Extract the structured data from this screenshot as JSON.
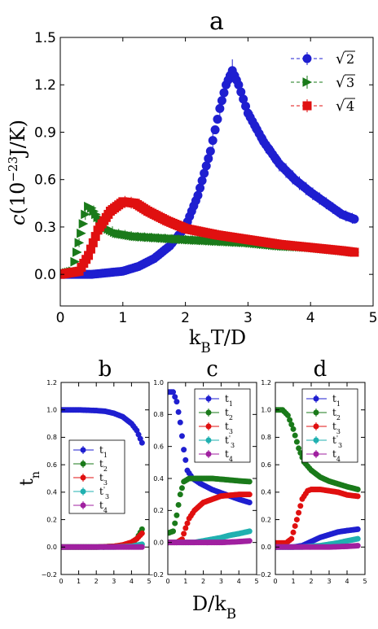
{
  "chart_data": [
    {
      "type": "scatter",
      "title": "a",
      "xlabel": "k_B T/D",
      "ylabel": "c(10^-23 J/K)",
      "xlim": [
        0,
        5
      ],
      "ylim": [
        -0.2,
        1.5
      ],
      "xticks": [
        "0",
        "1",
        "2",
        "3",
        "4",
        "5"
      ],
      "yticks": [
        "0.0",
        "0.3",
        "0.6",
        "0.9",
        "1.2",
        "1.5"
      ],
      "legend_position": "top-right",
      "series": [
        {
          "name": "√2",
          "color": "#1f1fd0",
          "marker": "circle",
          "x": [
            0.0,
            0.5,
            1.0,
            1.25,
            1.5,
            1.75,
            2.0,
            2.2,
            2.4,
            2.55,
            2.65,
            2.75,
            2.85,
            3.0,
            3.25,
            3.5,
            3.75,
            4.0,
            4.25,
            4.5,
            4.7
          ],
          "y": [
            0.0,
            0.0,
            0.02,
            0.05,
            0.1,
            0.18,
            0.3,
            0.5,
            0.78,
            1.05,
            1.2,
            1.29,
            1.2,
            1.02,
            0.84,
            0.7,
            0.6,
            0.52,
            0.45,
            0.38,
            0.35
          ]
        },
        {
          "name": "√3",
          "color": "#1a7a1a",
          "marker": "triangle-right",
          "x": [
            0.0,
            0.2,
            0.3,
            0.4,
            0.45,
            0.5,
            0.6,
            0.7,
            0.9,
            1.2,
            1.6,
            2.0,
            2.5,
            3.0,
            3.5,
            4.0,
            4.5,
            4.7
          ],
          "y": [
            0.0,
            0.02,
            0.2,
            0.38,
            0.43,
            0.42,
            0.36,
            0.3,
            0.26,
            0.24,
            0.23,
            0.22,
            0.21,
            0.2,
            0.18,
            0.17,
            0.15,
            0.14
          ]
        },
        {
          "name": "√4",
          "color": "#e01010",
          "marker": "square",
          "x": [
            0.0,
            0.3,
            0.45,
            0.6,
            0.8,
            1.0,
            1.2,
            1.4,
            1.7,
            2.0,
            2.5,
            3.0,
            3.5,
            4.0,
            4.5,
            4.7
          ],
          "y": [
            0.0,
            0.02,
            0.12,
            0.28,
            0.4,
            0.46,
            0.45,
            0.4,
            0.34,
            0.29,
            0.25,
            0.22,
            0.19,
            0.17,
            0.15,
            0.14
          ]
        }
      ]
    },
    {
      "type": "scatter",
      "title": "b",
      "ylabel": "t_n",
      "xlim": [
        0,
        5
      ],
      "ylim": [
        -0.2,
        1.2
      ],
      "xticks": [
        "0",
        "1",
        "2",
        "3",
        "4",
        "5"
      ],
      "yticks": [
        "−0.2",
        "0.0",
        "0.2",
        "0.4",
        "0.6",
        "0.8",
        "1.0",
        "1.2"
      ],
      "legend_position": "lower-left",
      "series": [
        {
          "name": "t1",
          "color": "#1f1fd0",
          "x": [
            0,
            1,
            2,
            2.5,
            3,
            3.5,
            4,
            4.3,
            4.6
          ],
          "y": [
            1.0,
            1.0,
            0.995,
            0.99,
            0.975,
            0.95,
            0.9,
            0.85,
            0.76
          ]
        },
        {
          "name": "t2",
          "color": "#1a7a1a",
          "x": [
            0,
            1,
            2,
            3,
            3.5,
            4,
            4.3,
            4.6
          ],
          "y": [
            0,
            0,
            0,
            0.005,
            0.01,
            0.03,
            0.06,
            0.13
          ]
        },
        {
          "name": "t3",
          "color": "#e01010",
          "x": [
            0,
            1,
            2,
            3,
            3.5,
            4,
            4.3,
            4.6
          ],
          "y": [
            0,
            0,
            0,
            0.005,
            0.015,
            0.035,
            0.06,
            0.1
          ]
        },
        {
          "name": "t'3",
          "color": "#20b0b0",
          "x": [
            0,
            1,
            2,
            3,
            4,
            4.6
          ],
          "y": [
            0,
            0,
            0,
            0,
            0.005,
            0.02
          ]
        },
        {
          "name": "t4",
          "color": "#a020a0",
          "x": [
            0,
            1,
            2,
            3,
            4,
            4.6
          ],
          "y": [
            0,
            0,
            0,
            0,
            0,
            0
          ]
        }
      ]
    },
    {
      "type": "scatter",
      "title": "c",
      "xlim": [
        0,
        5
      ],
      "ylim": [
        -0.2,
        1.0
      ],
      "xticks": [
        "0",
        "1",
        "2",
        "3",
        "4",
        "5"
      ],
      "yticks": [
        "−0.2",
        "0.0",
        "0.2",
        "0.4",
        "0.6",
        "0.8",
        "1.0"
      ],
      "legend_position": "top-right",
      "series": [
        {
          "name": "t1",
          "color": "#1f1fd0",
          "x": [
            0.05,
            0.3,
            0.5,
            0.7,
            0.9,
            1.1,
            1.4,
            1.8,
            2.5,
            3.0,
            3.5,
            4.0,
            4.6
          ],
          "y": [
            0.94,
            0.94,
            0.88,
            0.75,
            0.58,
            0.45,
            0.4,
            0.37,
            0.33,
            0.31,
            0.29,
            0.27,
            0.25
          ]
        },
        {
          "name": "t2",
          "color": "#1a7a1a",
          "x": [
            0.05,
            0.3,
            0.5,
            0.7,
            0.9,
            1.2,
            1.5,
            2.0,
            2.5,
            3.0,
            3.5,
            4.0,
            4.6
          ],
          "y": [
            0.06,
            0.07,
            0.17,
            0.3,
            0.38,
            0.4,
            0.4,
            0.4,
            0.4,
            0.395,
            0.39,
            0.385,
            0.38
          ]
        },
        {
          "name": "t3",
          "color": "#e01010",
          "x": [
            0.05,
            0.5,
            0.8,
            1.0,
            1.2,
            1.5,
            2.0,
            2.5,
            3.0,
            3.5,
            4.0,
            4.6
          ],
          "y": [
            0,
            0,
            0.02,
            0.09,
            0.15,
            0.2,
            0.25,
            0.27,
            0.29,
            0.295,
            0.3,
            0.3
          ]
        },
        {
          "name": "t'3",
          "color": "#20b0b0",
          "x": [
            0.05,
            1.0,
            1.5,
            2.0,
            2.5,
            3.0,
            3.5,
            4.0,
            4.6
          ],
          "y": [
            0,
            0,
            0,
            0.01,
            0.02,
            0.03,
            0.045,
            0.055,
            0.07
          ]
        },
        {
          "name": "t4",
          "color": "#a020a0",
          "x": [
            0.05,
            1,
            2,
            3,
            4,
            4.6
          ],
          "y": [
            0,
            0,
            0,
            0,
            0.005,
            0.01
          ]
        }
      ]
    },
    {
      "type": "scatter",
      "title": "d",
      "xlim": [
        0,
        5
      ],
      "ylim": [
        -0.2,
        1.2
      ],
      "xticks": [
        "0",
        "1",
        "2",
        "3",
        "4",
        "5"
      ],
      "yticks": [
        "−0.2",
        "0.0",
        "0.2",
        "0.4",
        "0.6",
        "0.8",
        "1.0",
        "1.2"
      ],
      "legend_position": "top-right",
      "series": [
        {
          "name": "t1",
          "color": "#1f1fd0",
          "x": [
            0.05,
            1.0,
            1.5,
            2.0,
            2.5,
            3.0,
            3.5,
            4.0,
            4.6
          ],
          "y": [
            0,
            0,
            0.01,
            0.04,
            0.07,
            0.09,
            0.11,
            0.12,
            0.13
          ]
        },
        {
          "name": "t2",
          "color": "#1a7a1a",
          "x": [
            0.05,
            0.4,
            0.7,
            1.0,
            1.3,
            1.6,
            2.0,
            2.5,
            3.0,
            3.5,
            4.0,
            4.6
          ],
          "y": [
            1.0,
            1.0,
            0.96,
            0.86,
            0.72,
            0.62,
            0.56,
            0.51,
            0.48,
            0.46,
            0.44,
            0.42
          ]
        },
        {
          "name": "t3",
          "color": "#e01010",
          "x": [
            0.05,
            0.6,
            0.9,
            1.2,
            1.5,
            1.8,
            2.0,
            2.5,
            3.0,
            3.5,
            4.0,
            4.6
          ],
          "y": [
            0.03,
            0.03,
            0.06,
            0.2,
            0.35,
            0.41,
            0.42,
            0.42,
            0.41,
            0.4,
            0.38,
            0.37
          ]
        },
        {
          "name": "t'3",
          "color": "#20b0b0",
          "x": [
            0.05,
            1.5,
            2.0,
            2.5,
            3.0,
            3.5,
            4.0,
            4.6
          ],
          "y": [
            0,
            0,
            0.005,
            0.01,
            0.02,
            0.03,
            0.045,
            0.06
          ]
        },
        {
          "name": "t4",
          "color": "#a020a0",
          "x": [
            0.05,
            1,
            2,
            3,
            4,
            4.6
          ],
          "y": [
            0,
            0,
            0,
            0,
            0.005,
            0.01
          ]
        }
      ]
    }
  ],
  "labels": {
    "bottom_xlabel": "D/k_B"
  }
}
